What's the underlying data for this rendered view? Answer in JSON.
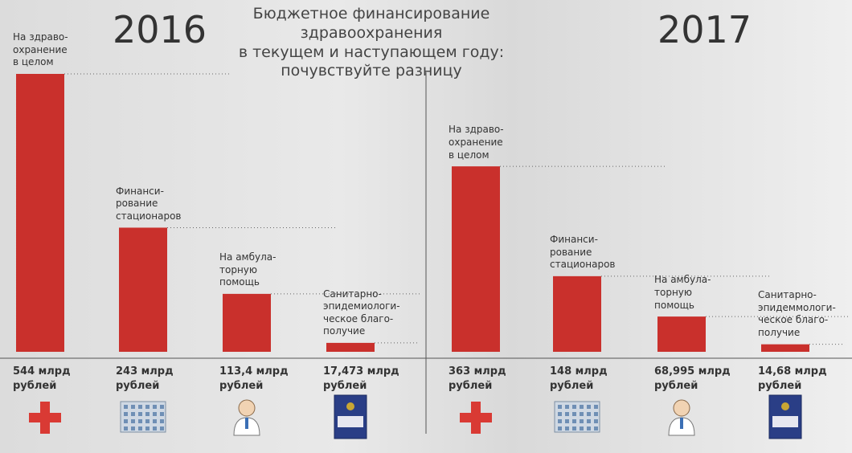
{
  "title": "Бюджетное финансирование здравоохранения\nв текущем и наступающем году:\nпочувствуйте разницу",
  "chart_data": [
    {
      "type": "bar",
      "year": "2016",
      "color": "#c9302c",
      "categories": [
        "На здраво-\nохранение\nв целом",
        "Финанси-\nрование\nстационаров",
        "На амбула-\nторную\nпомощь",
        "Санитарно-\nэпидемиологи-\nческое благо-\nполучие"
      ],
      "values": [
        544,
        243,
        113.4,
        17.473
      ],
      "value_labels": [
        "544 млрд\nрублей",
        "243 млрд\nрублей",
        "113,4 млрд\nрублей",
        "17,473 млрд\nрублей"
      ]
    },
    {
      "type": "bar",
      "year": "2017",
      "color": "#c9302c",
      "categories": [
        "На здраво-\nохранение\nв целом",
        "Финанси-\nрование\nстационаров",
        "На амбула-\nторную\nпомощь",
        "Санитарно-\nэпидеммологи-\nческое благо-\nполучие"
      ],
      "values": [
        363,
        148,
        68.995,
        14.68
      ],
      "value_labels": [
        "363 млрд\nрублей",
        "148 млрд\nрублей",
        "68,995 млрд\nрублей",
        "14,68 млрд\nрублей"
      ]
    }
  ]
}
